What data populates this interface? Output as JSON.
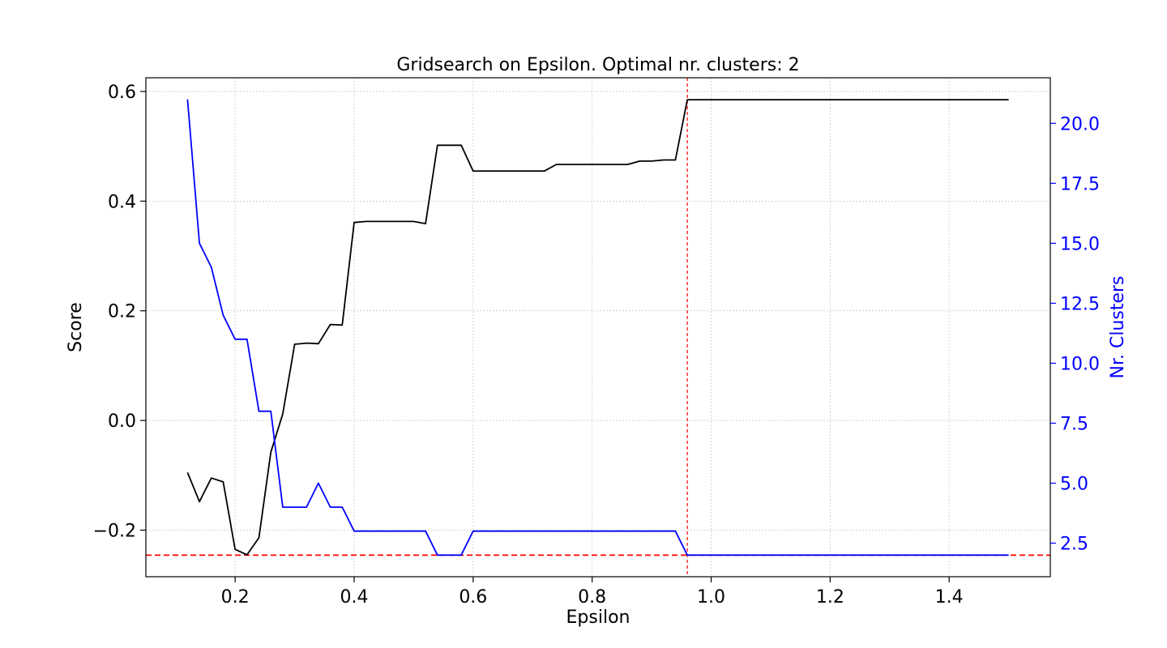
{
  "chart_data": {
    "type": "line",
    "title": "Gridsearch on Epsilon. Optimal nr. clusters: 2",
    "xlabel": "Epsilon",
    "ylabel": "Score",
    "y2label": "Nr. Clusters",
    "xlim": [
      0.05,
      1.57
    ],
    "ylim": [
      -0.285,
      0.625
    ],
    "y2lim": [
      1.1,
      21.9
    ],
    "xticks": [
      0.2,
      0.4,
      0.6,
      0.8,
      1.0,
      1.2,
      1.4
    ],
    "xtick_labels": [
      "0.2",
      "0.4",
      "0.6",
      "0.8",
      "1.0",
      "1.2",
      "1.4"
    ],
    "yticks": [
      -0.2,
      0.0,
      0.2,
      0.4,
      0.6
    ],
    "ytick_labels": [
      "−0.2",
      "0.0",
      "0.2",
      "0.4",
      "0.6"
    ],
    "y2ticks": [
      2.5,
      5.0,
      7.5,
      10.0,
      12.5,
      15.0,
      17.5,
      20.0
    ],
    "y2tick_labels": [
      "2.5",
      "5.0",
      "7.5",
      "10.0",
      "12.5",
      "15.0",
      "17.5",
      "20.0"
    ],
    "grid": true,
    "x": [
      0.12,
      0.14,
      0.16,
      0.18,
      0.2,
      0.22,
      0.24,
      0.26,
      0.28,
      0.3,
      0.32,
      0.34,
      0.36,
      0.38,
      0.4,
      0.42,
      0.44,
      0.46,
      0.48,
      0.5,
      0.52,
      0.54,
      0.56,
      0.58,
      0.6,
      0.62,
      0.64,
      0.66,
      0.68,
      0.7,
      0.72,
      0.74,
      0.76,
      0.78,
      0.8,
      0.82,
      0.84,
      0.86,
      0.88,
      0.9,
      0.92,
      0.94,
      0.96,
      0.98,
      1.0,
      1.02,
      1.04,
      1.06,
      1.08,
      1.1,
      1.12,
      1.14,
      1.16,
      1.18,
      1.2,
      1.22,
      1.24,
      1.26,
      1.28,
      1.3,
      1.32,
      1.34,
      1.36,
      1.38,
      1.4,
      1.42,
      1.44,
      1.46,
      1.48,
      1.5
    ],
    "series": [
      {
        "name": "Score",
        "axis": "left",
        "color": "#000000",
        "values": [
          -0.095,
          -0.148,
          -0.105,
          -0.112,
          -0.235,
          -0.245,
          -0.214,
          -0.058,
          0.012,
          0.139,
          0.141,
          0.14,
          0.175,
          0.174,
          0.361,
          0.363,
          0.363,
          0.363,
          0.363,
          0.363,
          0.359,
          0.502,
          0.502,
          0.502,
          0.455,
          0.455,
          0.455,
          0.455,
          0.455,
          0.455,
          0.455,
          0.467,
          0.467,
          0.467,
          0.467,
          0.467,
          0.467,
          0.467,
          0.473,
          0.473,
          0.475,
          0.475,
          0.585,
          0.585,
          0.585,
          0.585,
          0.585,
          0.585,
          0.585,
          0.585,
          0.585,
          0.585,
          0.585,
          0.585,
          0.585,
          0.585,
          0.585,
          0.585,
          0.585,
          0.585,
          0.585,
          0.585,
          0.585,
          0.585,
          0.585,
          0.585,
          0.585,
          0.585,
          0.585,
          0.585
        ]
      },
      {
        "name": "Nr. Clusters",
        "axis": "right",
        "color": "#0000ff",
        "values": [
          21,
          15,
          14,
          12,
          11,
          11,
          8,
          8,
          4,
          4,
          4,
          5,
          4,
          4,
          3,
          3,
          3,
          3,
          3,
          3,
          3,
          2,
          2,
          2,
          3,
          3,
          3,
          3,
          3,
          3,
          3,
          3,
          3,
          3,
          3,
          3,
          3,
          3,
          3,
          3,
          3,
          3,
          2,
          2,
          2,
          2,
          2,
          2,
          2,
          2,
          2,
          2,
          2,
          2,
          2,
          2,
          2,
          2,
          2,
          2,
          2,
          2,
          2,
          2,
          2,
          2,
          2,
          2,
          2,
          2
        ]
      }
    ],
    "reference_lines": [
      {
        "orientation": "vertical",
        "axis": "x",
        "value": 0.96,
        "color": "#ff0000",
        "style": "dashed"
      },
      {
        "orientation": "horizontal",
        "axis": "right",
        "value": 2,
        "color": "#ff0000",
        "style": "dashed"
      }
    ],
    "colors": {
      "left_axis": "#000000",
      "right_axis": "#0000ff",
      "reference": "#ff0000",
      "grid": "#cccccc"
    }
  }
}
